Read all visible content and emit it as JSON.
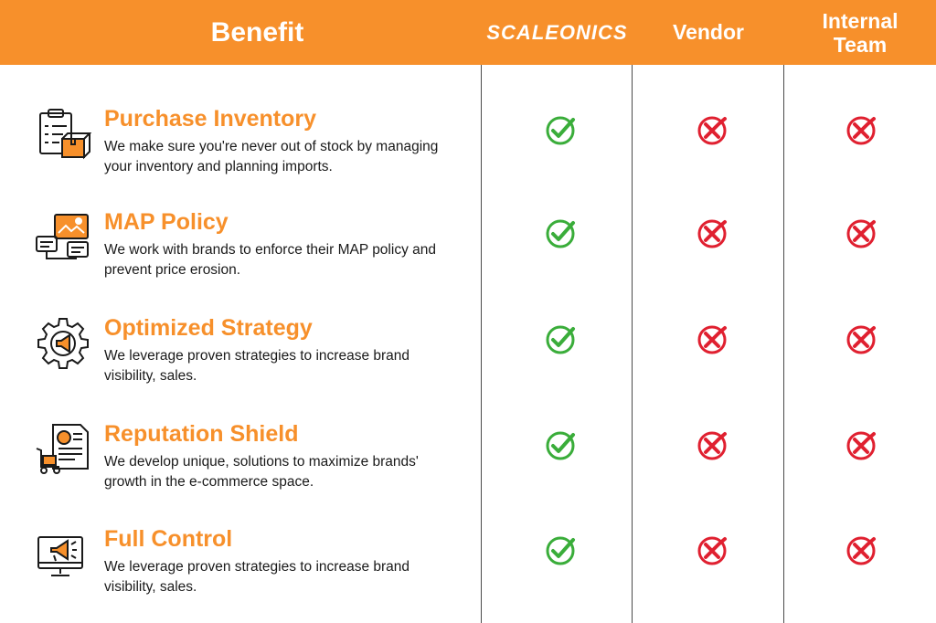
{
  "header": {
    "benefit": "Benefit",
    "brand": "SCALEONICS",
    "vendor": "Vendor",
    "team": "Internal\nTeam"
  },
  "colors": {
    "accent": "#f7902b",
    "check": "#3aad3a",
    "cross": "#e02030",
    "text": "#1a1a1a"
  },
  "rows": [
    {
      "title": "Purchase Inventory",
      "description": "We make sure you're never out of stock by managing your inventory and planning imports.",
      "icon": "clipboard-box-icon",
      "scaleonics": "check",
      "vendor": "cross",
      "team": "cross"
    },
    {
      "title": "MAP Policy",
      "description": "We work with brands to enforce their MAP policy and prevent price erosion.",
      "icon": "map-policy-icon",
      "scaleonics": "check",
      "vendor": "cross",
      "team": "cross"
    },
    {
      "title": "Optimized Strategy",
      "description": "We leverage proven strategies to increase brand visibility, sales.",
      "icon": "gear-megaphone-icon",
      "scaleonics": "check",
      "vendor": "cross",
      "team": "cross"
    },
    {
      "title": "Reputation Shield",
      "description": "We develop unique, solutions to maximize brands' growth in the e-commerce space.",
      "icon": "invoice-cart-icon",
      "scaleonics": "check",
      "vendor": "cross",
      "team": "cross"
    },
    {
      "title": "Full Control",
      "description": "We leverage proven strategies to increase brand visibility, sales.",
      "icon": "monitor-megaphone-icon",
      "scaleonics": "check",
      "vendor": "cross",
      "team": "cross"
    }
  ]
}
